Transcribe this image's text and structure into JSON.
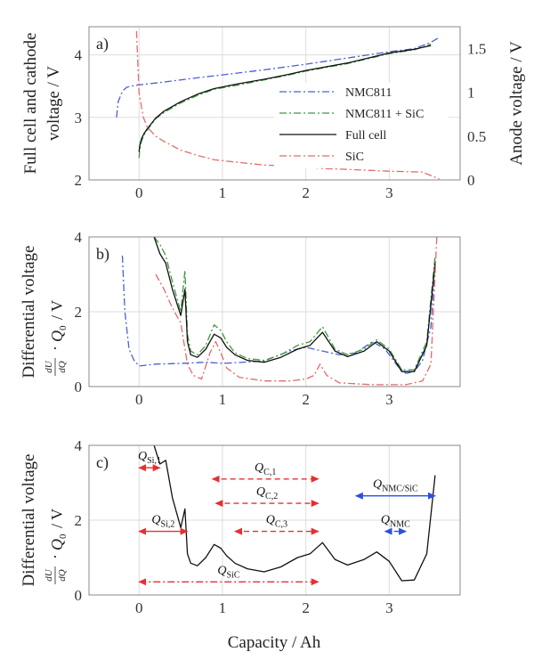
{
  "figure": {
    "xlabel": "Capacity / Ah",
    "x_ticks": [
      "0",
      "1",
      "2",
      "3"
    ],
    "colors": {
      "full_cell": "#111111",
      "nmc811": "#4a5fd6",
      "nmc811_sic": "#3f9a3f",
      "sic": "#e46a6a",
      "annotation_red": "#e53030",
      "annotation_blue": "#2b4fe0",
      "grid": "#dddddd"
    }
  },
  "chart_data": [
    {
      "panel": "a)",
      "type": "line",
      "ylabel": [
        "Full cell and cathode",
        "voltage / V"
      ],
      "y2label": "Anode voltage / V",
      "xlim": [
        -0.6,
        3.85
      ],
      "ylim": [
        2,
        4.45
      ],
      "y2lim": [
        0,
        1.75
      ],
      "y_ticks": [
        "2",
        "3",
        "4"
      ],
      "y2_ticks": [
        "0",
        "0.5",
        "1",
        "1.5"
      ],
      "grid": true,
      "legend_position": "center-right",
      "series": [
        {
          "name": "NMC811",
          "axis": "left",
          "style": "dashdot",
          "color_key": "nmc811",
          "x": [
            -0.27,
            -0.25,
            -0.2,
            -0.15,
            -0.1,
            0,
            0.2,
            0.5,
            0.8,
            1.0,
            1.5,
            2.0,
            2.5,
            3.0,
            3.3,
            3.5,
            3.6
          ],
          "y": [
            3.0,
            3.25,
            3.42,
            3.48,
            3.5,
            3.52,
            3.55,
            3.6,
            3.65,
            3.68,
            3.76,
            3.85,
            3.95,
            4.05,
            4.1,
            4.2,
            4.28
          ]
        },
        {
          "name": "NMC811 + SiC",
          "axis": "left",
          "style": "dashdot",
          "color_key": "nmc811_sic",
          "x": [
            0,
            0.01,
            0.03,
            0.06,
            0.1,
            0.2,
            0.3,
            0.5,
            0.7,
            0.9,
            1.2,
            1.5,
            1.8,
            2.0,
            2.5,
            3.0,
            3.3,
            3.5
          ],
          "y": [
            2.35,
            2.5,
            2.62,
            2.72,
            2.8,
            2.98,
            3.08,
            3.23,
            3.35,
            3.45,
            3.52,
            3.6,
            3.68,
            3.74,
            3.86,
            4.02,
            4.08,
            4.17
          ]
        },
        {
          "name": "Full cell",
          "axis": "left",
          "style": "solid",
          "color_key": "full_cell",
          "x": [
            0,
            0.01,
            0.03,
            0.06,
            0.1,
            0.2,
            0.3,
            0.5,
            0.7,
            0.9,
            1.2,
            1.5,
            1.8,
            2.0,
            2.5,
            3.0,
            3.3,
            3.5
          ],
          "y": [
            2.45,
            2.56,
            2.66,
            2.74,
            2.82,
            2.99,
            3.1,
            3.25,
            3.37,
            3.46,
            3.54,
            3.61,
            3.69,
            3.75,
            3.87,
            4.03,
            4.09,
            4.15
          ]
        },
        {
          "name": "SiC",
          "axis": "right",
          "style": "dashdot",
          "color_key": "sic",
          "x": [
            -0.03,
            -0.02,
            0,
            0.05,
            0.1,
            0.2,
            0.3,
            0.5,
            0.7,
            0.9,
            1.0,
            1.5,
            2.0,
            2.2,
            2.5,
            3.0,
            3.4,
            3.5,
            3.6
          ],
          "y": [
            1.7,
            1.45,
            1.0,
            0.72,
            0.6,
            0.5,
            0.44,
            0.34,
            0.28,
            0.23,
            0.22,
            0.17,
            0.15,
            0.13,
            0.12,
            0.1,
            0.09,
            0.05,
            0.01
          ]
        }
      ]
    },
    {
      "panel": "b)",
      "type": "line",
      "ylabel": [
        "Differential voltage",
        "dU/dQ · Q0 / V"
      ],
      "xlim": [
        -0.6,
        3.85
      ],
      "ylim": [
        0,
        4
      ],
      "y_ticks": [
        "0",
        "2",
        "4"
      ],
      "grid": true,
      "series": [
        {
          "name": "NMC811",
          "style": "dashdot",
          "color_key": "nmc811",
          "x": [
            -0.2,
            -0.17,
            -0.12,
            -0.06,
            0,
            0.2,
            0.5,
            0.8,
            1.0,
            1.5,
            1.8,
            2.0,
            2.2,
            2.4,
            2.6,
            2.8,
            2.95,
            3.1,
            3.2,
            3.3,
            3.4,
            3.5,
            3.55
          ],
          "y": [
            3.5,
            2.0,
            1.0,
            0.7,
            0.55,
            0.6,
            0.62,
            0.65,
            0.62,
            0.68,
            0.95,
            1.05,
            0.95,
            0.85,
            0.9,
            1.2,
            1.0,
            0.55,
            0.35,
            0.4,
            0.7,
            1.6,
            3.4
          ]
        },
        {
          "name": "NMC811 + SiC",
          "style": "dashdot",
          "color_key": "nmc811_sic",
          "x": [
            0.18,
            0.25,
            0.32,
            0.4,
            0.5,
            0.55,
            0.58,
            0.62,
            0.7,
            0.8,
            0.9,
            0.98,
            1.05,
            1.15,
            1.3,
            1.5,
            1.7,
            1.9,
            2.05,
            2.2,
            2.35,
            2.5,
            2.7,
            2.85,
            3.0,
            3.15,
            3.3,
            3.45,
            3.55
          ],
          "y": [
            4.0,
            3.8,
            3.5,
            2.8,
            2.0,
            3.1,
            1.4,
            0.95,
            0.85,
            1.1,
            1.65,
            1.5,
            1.2,
            0.9,
            0.75,
            0.7,
            0.85,
            1.1,
            1.2,
            1.6,
            1.0,
            0.85,
            1.0,
            1.25,
            1.0,
            0.45,
            0.45,
            1.2,
            3.5
          ]
        },
        {
          "name": "Full cell",
          "style": "solid",
          "color_key": "full_cell",
          "x": [
            0.18,
            0.25,
            0.32,
            0.4,
            0.5,
            0.55,
            0.58,
            0.62,
            0.7,
            0.8,
            0.9,
            0.98,
            1.05,
            1.15,
            1.3,
            1.5,
            1.7,
            1.9,
            2.05,
            2.2,
            2.35,
            2.5,
            2.7,
            2.85,
            3.0,
            3.15,
            3.3,
            3.45,
            3.55
          ],
          "y": [
            4.0,
            3.55,
            3.3,
            2.6,
            1.9,
            2.6,
            1.2,
            0.85,
            0.78,
            1.0,
            1.4,
            1.3,
            1.05,
            0.85,
            0.7,
            0.65,
            0.78,
            1.0,
            1.1,
            1.45,
            0.95,
            0.8,
            0.95,
            1.2,
            0.95,
            0.4,
            0.4,
            1.1,
            3.3
          ]
        },
        {
          "name": "SiC",
          "style": "dashdot",
          "color_key": "sic",
          "x": [
            0.2,
            0.3,
            0.4,
            0.5,
            0.58,
            0.65,
            0.75,
            0.85,
            0.92,
            0.98,
            1.05,
            1.2,
            1.5,
            1.8,
            2.0,
            2.1,
            2.17,
            2.25,
            2.4,
            2.8,
            3.2,
            3.4,
            3.5,
            3.57
          ],
          "y": [
            3.0,
            2.6,
            2.1,
            1.7,
            0.6,
            0.3,
            0.2,
            0.9,
            1.2,
            0.9,
            0.5,
            0.25,
            0.15,
            0.15,
            0.2,
            0.3,
            0.6,
            0.3,
            0.1,
            0.05,
            0.05,
            0.15,
            0.6,
            4.0
          ]
        }
      ]
    },
    {
      "panel": "c)",
      "type": "line",
      "ylabel": [
        "Differential voltage",
        "dU/dQ · Q0 / V"
      ],
      "xlim": [
        -0.6,
        3.85
      ],
      "ylim": [
        0,
        4
      ],
      "y_ticks": [
        "0",
        "2",
        "4"
      ],
      "grid": true,
      "series": [
        {
          "name": "Full cell",
          "style": "solid",
          "color_key": "full_cell",
          "x": [
            0.18,
            0.25,
            0.32,
            0.4,
            0.5,
            0.55,
            0.58,
            0.62,
            0.7,
            0.8,
            0.9,
            0.98,
            1.05,
            1.15,
            1.3,
            1.5,
            1.7,
            1.9,
            2.05,
            2.2,
            2.35,
            2.5,
            2.7,
            2.85,
            3.0,
            3.15,
            3.3,
            3.45,
            3.55
          ],
          "y": [
            4.0,
            3.5,
            3.6,
            2.6,
            1.8,
            2.3,
            1.1,
            0.85,
            0.78,
            1.0,
            1.35,
            1.25,
            1.05,
            0.85,
            0.7,
            0.62,
            0.75,
            1.0,
            1.1,
            1.4,
            0.95,
            0.8,
            0.95,
            1.15,
            0.9,
            0.38,
            0.4,
            1.1,
            3.2
          ]
        }
      ],
      "annotations": [
        {
          "label": "Q",
          "sub": "Si,1",
          "x0": 0.0,
          "x1": 0.25,
          "y": 3.4,
          "style": "solid",
          "color_key": "annotation_red"
        },
        {
          "label": "Q",
          "sub": "Si,2",
          "x0": 0.0,
          "x1": 0.58,
          "y": 1.7,
          "style": "solid",
          "color_key": "annotation_red"
        },
        {
          "label": "Q",
          "sub": "C,1",
          "x0": 0.88,
          "x1": 2.15,
          "y": 3.1,
          "style": "dashed",
          "color_key": "annotation_red"
        },
        {
          "label": "Q",
          "sub": "C,2",
          "x0": 0.92,
          "x1": 2.15,
          "y": 2.45,
          "style": "dashed",
          "color_key": "annotation_red"
        },
        {
          "label": "Q",
          "sub": "C,3",
          "x0": 1.15,
          "x1": 2.15,
          "y": 1.7,
          "style": "dashed",
          "color_key": "annotation_red"
        },
        {
          "label": "Q",
          "sub": "SiC",
          "x0": 0.0,
          "x1": 2.15,
          "y": 0.35,
          "style": "dashdot",
          "color_key": "annotation_red"
        },
        {
          "label": "Q",
          "sub": "NMC/SiC",
          "x0": 2.6,
          "x1": 3.55,
          "y": 2.65,
          "style": "solid",
          "color_key": "annotation_blue"
        },
        {
          "label": "Q",
          "sub": "NMC",
          "x0": 2.95,
          "x1": 3.2,
          "y": 1.7,
          "style": "dashed",
          "color_key": "annotation_blue"
        }
      ]
    }
  ]
}
